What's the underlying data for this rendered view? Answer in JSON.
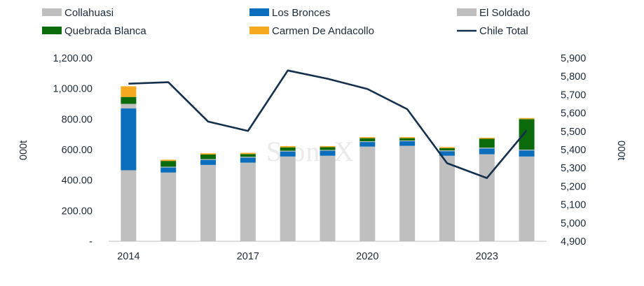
{
  "chart_data": {
    "type": "bar",
    "stacked": true,
    "watermark": "StoneX",
    "categories": [
      "2014",
      "2015",
      "2016",
      "2017",
      "2018",
      "2019",
      "2020",
      "2021",
      "2022",
      "2023",
      "2024"
    ],
    "x_tick_labels": [
      {
        "index": 0,
        "label": "2014"
      },
      {
        "index": 3,
        "label": "2017"
      },
      {
        "index": 6,
        "label": "2020"
      },
      {
        "index": 9,
        "label": "2023"
      }
    ],
    "series": [
      {
        "name": "Collahuasi",
        "color": "#bfbfbf",
        "axis": "left",
        "values": [
          465,
          450,
          500,
          515,
          555,
          560,
          620,
          625,
          560,
          570,
          555
        ]
      },
      {
        "name": "Los Bronces",
        "color": "#0a6ebd",
        "axis": "left",
        "values": [
          405,
          33,
          33,
          33,
          33,
          33,
          30,
          30,
          30,
          38,
          40
        ]
      },
      {
        "name": "El Soldado",
        "color": "#bfbfbf",
        "axis": "left",
        "values": [
          30,
          5,
          5,
          5,
          5,
          5,
          5,
          5,
          5,
          5,
          5
        ]
      },
      {
        "name": "Quebrada Blanca",
        "color": "#0b6b0b",
        "axis": "left",
        "values": [
          45,
          38,
          30,
          18,
          22,
          18,
          20,
          15,
          15,
          58,
          200
        ]
      },
      {
        "name": "Carmen De Andacollo",
        "color": "#f5a91e",
        "axis": "left",
        "values": [
          70,
          8,
          8,
          8,
          8,
          7,
          7,
          7,
          7,
          7,
          7
        ]
      }
    ],
    "line_series": {
      "name": "Chile Total",
      "color": "#14304d",
      "axis": "right",
      "values": [
        5760,
        5768,
        5553,
        5502,
        5832,
        5787,
        5731,
        5621,
        5326,
        5245,
        5505
      ]
    },
    "left_axis": {
      "ylim": [
        0,
        1200
      ],
      "ticks": [
        "-",
        "200.00",
        "400.00",
        "600.00",
        "800.00",
        "1,000.00",
        "1,200.00"
      ],
      "label": "000t"
    },
    "right_axis": {
      "ylim": [
        4900,
        5900
      ],
      "ticks": [
        "4,900",
        "5,000",
        "5,100",
        "5,200",
        "5,300",
        "5,400",
        "5,500",
        "5,600",
        "5,700",
        "5,800",
        "5,900"
      ],
      "label": "000t"
    },
    "legend_placement": "top",
    "legend": [
      "Collahuasi",
      "Los Bronces",
      "El Soldado",
      "Quebrada Blanca",
      "Carmen De Andacollo",
      "Chile Total"
    ],
    "grid": false
  }
}
